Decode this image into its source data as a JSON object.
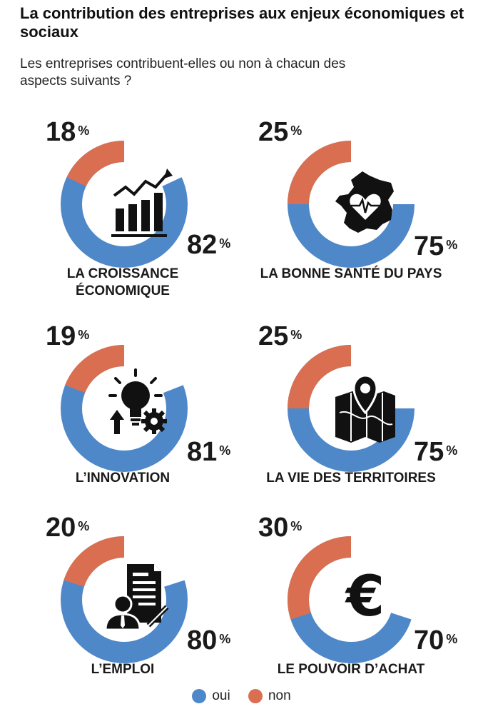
{
  "title": "La contribution des entreprises aux enjeux économiques et sociaux",
  "subtitle": "Les entreprises contribuent-elles ou non à chacun des aspects suivants ?",
  "colors": {
    "oui": "#4f88c8",
    "non": "#d96f50"
  },
  "legend": {
    "oui": "oui",
    "non": "non"
  },
  "percent_symbol": "%",
  "chart_data": {
    "type": "pie",
    "series_names": [
      "oui",
      "non"
    ],
    "items": [
      {
        "label": "LA CROISSANCE ÉCONOMIQUE",
        "oui": 82,
        "non": 18,
        "icon": "growth-chart-icon"
      },
      {
        "label": "LA BONNE SANTÉ DU PAYS",
        "oui": 75,
        "non": 25,
        "icon": "france-heart-icon"
      },
      {
        "label": "L’INNOVATION",
        "oui": 81,
        "non": 19,
        "icon": "lightbulb-gear-icon"
      },
      {
        "label": "LA VIE DES TERRITOIRES",
        "oui": 75,
        "non": 25,
        "icon": "map-pin-icon"
      },
      {
        "label": "L’EMPLOI",
        "oui": 80,
        "non": 20,
        "icon": "employee-document-icon"
      },
      {
        "label": "LE POUVOIR D’ACHAT",
        "oui": 70,
        "non": 30,
        "icon": "euro-icon"
      }
    ]
  }
}
